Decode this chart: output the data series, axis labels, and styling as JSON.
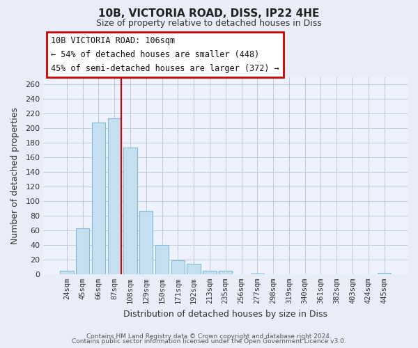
{
  "title": "10B, VICTORIA ROAD, DISS, IP22 4HE",
  "subtitle": "Size of property relative to detached houses in Diss",
  "xlabel": "Distribution of detached houses by size in Diss",
  "ylabel": "Number of detached properties",
  "bar_labels": [
    "24sqm",
    "45sqm",
    "66sqm",
    "87sqm",
    "108sqm",
    "129sqm",
    "150sqm",
    "171sqm",
    "192sqm",
    "213sqm",
    "235sqm",
    "256sqm",
    "277sqm",
    "298sqm",
    "319sqm",
    "340sqm",
    "361sqm",
    "382sqm",
    "403sqm",
    "424sqm",
    "445sqm"
  ],
  "bar_values": [
    5,
    63,
    208,
    213,
    173,
    87,
    40,
    19,
    14,
    5,
    5,
    0,
    1,
    0,
    0,
    0,
    0,
    0,
    0,
    0,
    2
  ],
  "bar_color": "#c6dff0",
  "bar_edge_color": "#7fbcd2",
  "highlight_line_color": "#cc0000",
  "ylim": [
    0,
    270
  ],
  "yticks": [
    0,
    20,
    40,
    60,
    80,
    100,
    120,
    140,
    160,
    180,
    200,
    220,
    240,
    260
  ],
  "annotation_title": "10B VICTORIA ROAD: 106sqm",
  "annotation_line1": "← 54% of detached houses are smaller (448)",
  "annotation_line2": "45% of semi-detached houses are larger (372) →",
  "footer1": "Contains HM Land Registry data © Crown copyright and database right 2024.",
  "footer2": "Contains public sector information licensed under the Open Government Licence v3.0.",
  "background_color": "#e8edf8",
  "plot_bg_color": "#edf2fc",
  "grid_color": "#c0c8d8"
}
